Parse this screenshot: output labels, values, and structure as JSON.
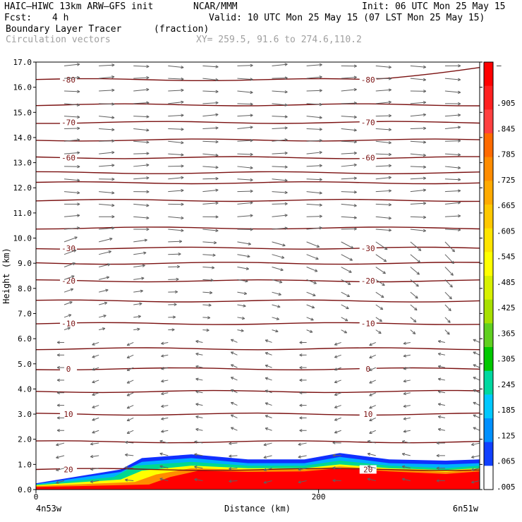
{
  "header": {
    "model_line": "HAIC–HIWC 13km ARW–GFS init",
    "org": "NCAR/MMM",
    "init_line": "Init: 06 UTC Mon 25 May 15",
    "fcst_label": "Fcst:",
    "fcst_value": "4 h",
    "valid_line": "Valid: 10 UTC Mon 25 May 15 (07 LST Mon 25 May 15)",
    "field_name": "Boundary Layer Tracer",
    "field_units": "(fraction)",
    "vector_label": "Circulation vectors",
    "xy_line": "XY= 259.5, 91.6 to 274.6,110.2"
  },
  "chart_data": {
    "type": "heatmap",
    "xlabel": "Distance (km)",
    "ylabel": "Height (km)",
    "xlim": [
      0,
      314
    ],
    "ylim": [
      0,
      17
    ],
    "x_ticks": [
      0,
      200
    ],
    "y_ticks": [
      "0.0",
      "1.0",
      "2.0",
      "3.0",
      "4.0",
      "5.0",
      "6.0",
      "7.0",
      "8.0",
      "9.0",
      "10.0",
      "11.0",
      "12.0",
      "13.0",
      "14.0",
      "15.0",
      "16.0",
      "17.0"
    ],
    "x_left_label": "4n53w",
    "x_right_label": "6n51w",
    "colorbar": {
      "labels": [
        "–",
        ".905",
        ".845",
        ".785",
        ".725",
        ".665",
        ".605",
        ".545",
        ".485",
        ".425",
        ".365",
        ".305",
        ".245",
        ".185",
        ".125",
        ".065",
        ".005"
      ],
      "colors": [
        "#ff0000",
        "#ff2020",
        "#ff4040",
        "#ff6a00",
        "#ff8c00",
        "#ffaa00",
        "#ffc800",
        "#ffe400",
        "#ffff00",
        "#d8f000",
        "#a8e000",
        "#60d020",
        "#00c800",
        "#00d8a0",
        "#00c8ff",
        "#0090ff",
        "#1040ff",
        "#ffffff"
      ]
    },
    "temperature_contours": [
      {
        "label": "-80",
        "height": 16.3
      },
      {
        "label": "-70",
        "height": 14.6
      },
      {
        "label": "-60",
        "height": 13.2
      },
      {
        "label": "-30",
        "height": 9.6
      },
      {
        "label": "-20",
        "height": 8.3
      },
      {
        "label": "-10",
        "height": 6.6
      },
      {
        "label": "0",
        "height": 4.8
      },
      {
        "label": "10",
        "height": 3.0
      },
      {
        "label": "20",
        "height": 0.8
      }
    ]
  }
}
